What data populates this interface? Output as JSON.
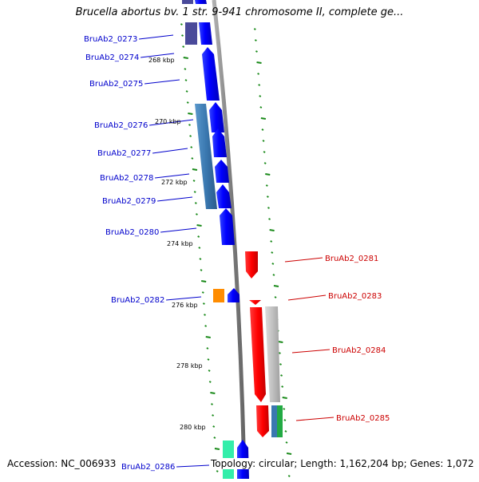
{
  "map": {
    "title": "Brucella abortus bv. 1 str. 9-941 chromosome II, complete ge...",
    "accession": "Accession: NC_006933",
    "summary": "Topology: circular; Length: 1,162,204 bp; Genes: 1,072"
  },
  "kbp_labels": [
    "268 kbp",
    "270 kbp",
    "272 kbp",
    "274 kbp",
    "276 kbp",
    "278 kbp",
    "280 kbp"
  ],
  "genes_left": [
    "BruAb2_0273",
    "BruAb2_0274",
    "BruAb2_0275",
    "BruAb2_0276",
    "BruAb2_0277",
    "BruAb2_0278",
    "BruAb2_0279",
    "BruAb2_0280",
    "BruAb2_0282",
    "BruAb2_0286"
  ],
  "genes_right": [
    "BruAb2_0281",
    "BruAb2_0283",
    "BruAb2_0284",
    "BruAb2_0285"
  ],
  "colors": {
    "left_label": "#0000cc",
    "right_label": "#cc0000",
    "backbone": "#8a8a8a",
    "tick": "#1a8a1a",
    "forward_gene": "#0000ff",
    "reverse_gene": "#ff0000",
    "feature_steel": "#3a78b0",
    "feature_purple": "#4a4a9a",
    "feature_orange": "#ff8c00",
    "feature_grey": "#c0c0c0",
    "feature_green": "#22aa44",
    "feature_teal": "#33eeaa"
  }
}
